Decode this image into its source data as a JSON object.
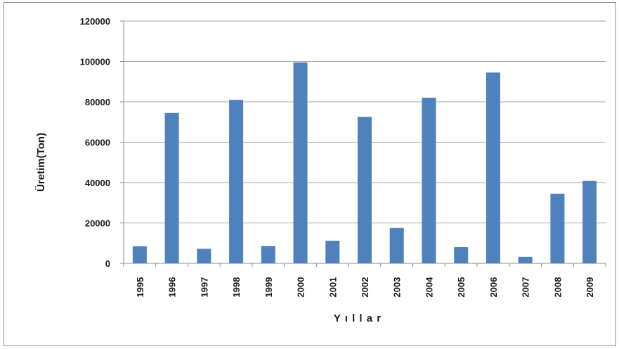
{
  "chart_data": {
    "type": "bar",
    "title": "",
    "xlabel": "Y ı l l a r",
    "ylabel": "Üretim(Ton)",
    "ylim": [
      0,
      120000
    ],
    "y_ticks": [
      "0",
      "20000",
      "40000",
      "60000",
      "80000",
      "100000",
      "120000"
    ],
    "categories": [
      "1995",
      "1996",
      "1997",
      "1998",
      "1999",
      "2000",
      "2001",
      "2002",
      "2003",
      "2004",
      "2005",
      "2006",
      "2007",
      "2008",
      "2009"
    ],
    "series": [
      {
        "values": [
          8500,
          74500,
          7200,
          81000,
          8600,
          99500,
          11200,
          72500,
          17500,
          82000,
          8000,
          94500,
          3200,
          34500,
          40800
        ]
      }
    ],
    "grid": true,
    "bar_color": "#4f81bd",
    "grid_color": "#a6a6a6"
  }
}
